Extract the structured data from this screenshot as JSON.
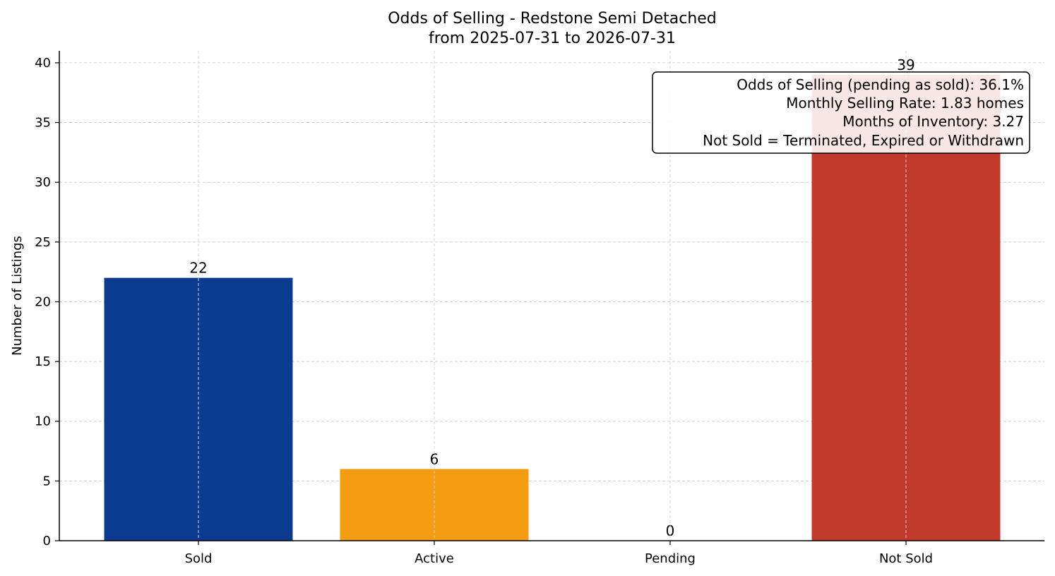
{
  "chart_data": {
    "type": "bar",
    "title": "Odds of Selling - Redstone Semi Detached",
    "subtitle": "from 2025-07-31 to 2026-07-31",
    "xlabel": "",
    "ylabel": "Number of Listings",
    "categories": [
      "Sold",
      "Active",
      "Pending",
      "Not Sold"
    ],
    "values": [
      22,
      6,
      0,
      39
    ],
    "colors": [
      "#0b3b8f",
      "#f39c12",
      "#7f8c8d",
      "#c0392b"
    ],
    "ylim": [
      0,
      41
    ],
    "yticks": [
      0,
      5,
      10,
      15,
      20,
      25,
      30,
      35,
      40
    ],
    "grid": true,
    "info_box": {
      "lines": [
        "Odds of Selling (pending as sold): 36.1%",
        "Monthly Selling Rate: 1.83 homes",
        "Months of Inventory: 3.27",
        "Not Sold = Terminated, Expired or Withdrawn"
      ],
      "placement": "top-right"
    }
  }
}
